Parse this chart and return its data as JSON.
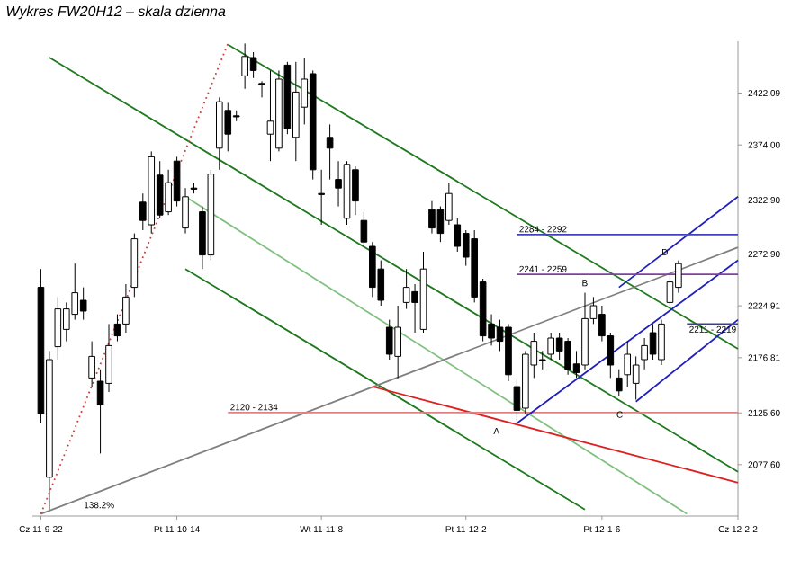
{
  "chart_data": {
    "type": "candlestick",
    "title": "Wykres FW20H12 – skala dzienna",
    "categories": [
      "Cz 11-9-22",
      null,
      null,
      null,
      null,
      null,
      null,
      null,
      null,
      null,
      null,
      null,
      null,
      null,
      null,
      null,
      "Pt 11-10-14",
      null,
      null,
      null,
      null,
      null,
      null,
      null,
      null,
      null,
      null,
      null,
      null,
      null,
      null,
      null,
      null,
      "Wt 11-11-8",
      null,
      null,
      null,
      null,
      null,
      null,
      null,
      null,
      null,
      null,
      null,
      null,
      null,
      null,
      null,
      null,
      "Pt 11-12-2",
      null,
      null,
      null,
      null,
      null,
      null,
      null,
      null,
      null,
      null,
      null,
      null,
      null,
      null,
      null,
      "Pt 12-1-6",
      null,
      null,
      null,
      null,
      null,
      null,
      null,
      null,
      null,
      null,
      null,
      null,
      null,
      null,
      null,
      "Cz 12-2-2"
    ],
    "ohlc": [
      [
        2242,
        2259,
        2116,
        2125
      ],
      [
        2066,
        2183,
        2036,
        2175
      ],
      [
        2187,
        2233,
        2175,
        2222
      ],
      [
        2203,
        2228,
        2192,
        2222
      ],
      [
        2217,
        2264,
        2212,
        2237
      ],
      [
        2230,
        2242,
        2212,
        2220
      ],
      [
        2158,
        2192,
        2150,
        2178
      ],
      [
        2155,
        2166,
        2088,
        2133
      ],
      [
        2153,
        2208,
        2145,
        2188
      ],
      [
        2208,
        2217,
        2192,
        2197
      ],
      [
        2208,
        2245,
        2200,
        2233
      ],
      [
        2242,
        2292,
        2233,
        2287
      ],
      [
        2321,
        2329,
        2295,
        2304
      ],
      [
        2300,
        2368,
        2292,
        2363
      ],
      [
        2346,
        2359,
        2306,
        2309
      ],
      [
        2312,
        2351,
        2309,
        2339
      ],
      [
        2359,
        2363,
        2317,
        2322
      ],
      [
        2297,
        2334,
        2292,
        2326
      ],
      [
        2334,
        2339,
        2329,
        2333
      ],
      [
        2312,
        2317,
        2259,
        2272
      ],
      [
        2272,
        2351,
        2267,
        2347
      ],
      [
        2371,
        2418,
        2351,
        2414
      ],
      [
        2406,
        2413,
        2368,
        2384
      ],
      [
        2401,
        2406,
        2396,
        2400
      ],
      [
        2438,
        2468,
        2426,
        2456
      ],
      [
        2455,
        2460,
        2436,
        2443
      ],
      [
        2431,
        2433,
        2418,
        2430
      ],
      [
        2384,
        2443,
        2359,
        2396
      ],
      [
        2371,
        2443,
        2368,
        2435
      ],
      [
        2448,
        2451,
        2384,
        2389
      ],
      [
        2381,
        2451,
        2359,
        2423
      ],
      [
        2409,
        2455,
        2393,
        2435
      ],
      [
        2440,
        2443,
        2342,
        2351
      ],
      [
        2329,
        2351,
        2300,
        2328
      ],
      [
        2381,
        2393,
        2342,
        2371
      ],
      [
        2342,
        2359,
        2317,
        2334
      ],
      [
        2306,
        2359,
        2300,
        2356
      ],
      [
        2351,
        2354,
        2309,
        2322
      ],
      [
        2304,
        2312,
        2279,
        2284
      ],
      [
        2280,
        2284,
        2233,
        2242
      ],
      [
        2259,
        2267,
        2225,
        2230
      ],
      [
        2205,
        2212,
        2175,
        2180
      ],
      [
        2178,
        2225,
        2158,
        2205
      ],
      [
        2228,
        2259,
        2222,
        2242
      ],
      [
        2238,
        2245,
        2200,
        2228
      ],
      [
        2203,
        2275,
        2200,
        2259
      ],
      [
        2314,
        2322,
        2292,
        2297
      ],
      [
        2314,
        2317,
        2284,
        2292
      ],
      [
        2304,
        2339,
        2300,
        2329
      ],
      [
        2300,
        2306,
        2275,
        2280
      ],
      [
        2292,
        2295,
        2262,
        2270
      ],
      [
        2287,
        2295,
        2228,
        2233
      ],
      [
        2247,
        2250,
        2192,
        2197
      ],
      [
        2208,
        2217,
        2188,
        2195
      ],
      [
        2205,
        2212,
        2183,
        2192
      ],
      [
        2205,
        2208,
        2155,
        2161
      ],
      [
        2150,
        2158,
        2116,
        2128
      ],
      [
        2130,
        2183,
        2125,
        2180
      ],
      [
        2170,
        2200,
        2158,
        2192
      ],
      [
        2175,
        2183,
        2166,
        2174
      ],
      [
        2180,
        2200,
        2175,
        2195
      ],
      [
        2195,
        2200,
        2175,
        2183
      ],
      [
        2192,
        2195,
        2161,
        2166
      ],
      [
        2171,
        2183,
        2158,
        2163
      ],
      [
        2170,
        2237,
        2166,
        2213
      ],
      [
        2213,
        2233,
        2208,
        2225
      ],
      [
        2217,
        2225,
        2192,
        2197
      ],
      [
        2197,
        2200,
        2158,
        2170
      ],
      [
        2158,
        2166,
        2141,
        2146
      ],
      [
        2161,
        2192,
        2150,
        2180
      ],
      [
        2153,
        2178,
        2138,
        2170
      ],
      [
        2175,
        2195,
        2166,
        2188
      ],
      [
        2200,
        2208,
        2175,
        2180
      ],
      [
        2175,
        2212,
        2170,
        2208
      ],
      [
        2228,
        2254,
        2225,
        2247
      ],
      [
        2242,
        2267,
        2237,
        2264
      ],
      null,
      null,
      null,
      null,
      null,
      null,
      null
    ],
    "series": [
      {
        "type": "line",
        "color": "#1f7a1f",
        "line_style": "solid",
        "values": [
          null,
          null,
          null,
          null,
          null,
          null,
          null,
          null,
          null,
          null,
          null,
          null,
          null,
          null,
          null,
          null,
          null,
          null,
          null,
          null,
          null,
          null,
          2467,
          null,
          null,
          null,
          null,
          null,
          null,
          null,
          null,
          null,
          null,
          null,
          null,
          null,
          null,
          null,
          null,
          null,
          null,
          null,
          null,
          null,
          null,
          null,
          null,
          null,
          null,
          null,
          null,
          null,
          null,
          null,
          null,
          null,
          null,
          null,
          null,
          null,
          null,
          null,
          null,
          null,
          null,
          null,
          null,
          null,
          null,
          null,
          null,
          null,
          null,
          null,
          null,
          null,
          null,
          null,
          null,
          null,
          null,
          null,
          2185
        ]
      },
      {
        "type": "line",
        "color": "#1f7a1f",
        "line_style": "solid",
        "values": [
          null,
          2455,
          null,
          null,
          null,
          null,
          null,
          null,
          null,
          null,
          null,
          null,
          null,
          null,
          null,
          null,
          null,
          null,
          null,
          null,
          null,
          null,
          null,
          null,
          null,
          null,
          null,
          null,
          null,
          null,
          null,
          null,
          null,
          null,
          null,
          null,
          null,
          null,
          null,
          null,
          null,
          null,
          null,
          null,
          null,
          null,
          null,
          null,
          null,
          null,
          null,
          null,
          null,
          null,
          null,
          null,
          null,
          null,
          null,
          null,
          null,
          null,
          null,
          null,
          null,
          null,
          null,
          null,
          null,
          null,
          null,
          null,
          null,
          null,
          null,
          null,
          null,
          null,
          null,
          null,
          null,
          null,
          2071
        ]
      },
      {
        "type": "line",
        "color": "#1f7a1f",
        "line_style": "solid",
        "values": [
          null,
          null,
          null,
          null,
          null,
          null,
          null,
          null,
          null,
          null,
          null,
          null,
          null,
          null,
          null,
          null,
          null,
          2259,
          null,
          null,
          null,
          null,
          null,
          null,
          null,
          null,
          null,
          null,
          null,
          null,
          null,
          null,
          null,
          null,
          null,
          null,
          null,
          null,
          null,
          null,
          null,
          null,
          null,
          null,
          null,
          null,
          null,
          null,
          null,
          null,
          null,
          null,
          null,
          null,
          null,
          null,
          null,
          null,
          null,
          null,
          null,
          null,
          null,
          null,
          2036,
          null,
          null,
          null,
          null,
          null,
          null,
          null,
          null,
          null,
          null,
          null,
          null,
          null,
          null,
          null,
          null,
          null,
          null
        ]
      },
      {
        "type": "line",
        "color": "#80c080",
        "line_style": "solid",
        "values": [
          null,
          null,
          null,
          null,
          null,
          null,
          null,
          null,
          null,
          null,
          null,
          null,
          null,
          null,
          null,
          null,
          null,
          2326,
          null,
          null,
          null,
          null,
          null,
          null,
          null,
          null,
          null,
          null,
          null,
          null,
          null,
          null,
          null,
          null,
          null,
          null,
          null,
          null,
          null,
          null,
          null,
          null,
          null,
          null,
          null,
          null,
          null,
          null,
          null,
          null,
          null,
          null,
          null,
          null,
          null,
          null,
          null,
          null,
          null,
          null,
          null,
          null,
          null,
          null,
          null,
          null,
          null,
          null,
          null,
          null,
          null,
          null,
          null,
          null,
          null,
          null,
          2032,
          null,
          null,
          null,
          null,
          null,
          null
        ]
      },
      {
        "type": "line",
        "color": "#808080",
        "line_style": "solid",
        "values": [
          2032,
          null,
          null,
          null,
          null,
          null,
          null,
          null,
          null,
          null,
          null,
          null,
          null,
          null,
          null,
          null,
          null,
          null,
          null,
          null,
          null,
          null,
          null,
          null,
          null,
          null,
          null,
          null,
          null,
          null,
          null,
          null,
          null,
          null,
          null,
          null,
          null,
          null,
          null,
          null,
          null,
          null,
          null,
          null,
          null,
          null,
          null,
          null,
          null,
          null,
          null,
          null,
          null,
          null,
          null,
          null,
          null,
          null,
          null,
          null,
          null,
          null,
          null,
          null,
          null,
          null,
          null,
          null,
          null,
          null,
          null,
          null,
          null,
          null,
          null,
          null,
          null,
          null,
          null,
          null,
          null,
          null,
          2279
        ]
      },
      {
        "type": "line",
        "color": "#d04040",
        "line_style": "dotted",
        "values": [
          2032,
          null,
          null,
          null,
          null,
          null,
          null,
          null,
          null,
          null,
          null,
          null,
          null,
          null,
          null,
          null,
          null,
          null,
          null,
          null,
          null,
          null,
          2468,
          null,
          null,
          null,
          null,
          null,
          null,
          null,
          null,
          null,
          null,
          null,
          null,
          null,
          null,
          null,
          null,
          null,
          null,
          null,
          null,
          null,
          null,
          null,
          null,
          null,
          null,
          null,
          null,
          null,
          null,
          null,
          null,
          null,
          null,
          null,
          null,
          null,
          null,
          null,
          null,
          null,
          null,
          null,
          null,
          null,
          null,
          null,
          null,
          null,
          null,
          null,
          null,
          null,
          null,
          null,
          null,
          null,
          null,
          null,
          null
        ]
      },
      {
        "type": "line",
        "color": "#e02020",
        "line_style": "solid",
        "values": [
          null,
          null,
          null,
          null,
          null,
          null,
          null,
          null,
          null,
          null,
          null,
          null,
          null,
          null,
          null,
          null,
          null,
          null,
          null,
          null,
          null,
          null,
          null,
          null,
          null,
          null,
          null,
          null,
          null,
          null,
          null,
          null,
          null,
          null,
          null,
          null,
          null,
          null,
          null,
          2150,
          null,
          null,
          null,
          null,
          null,
          null,
          null,
          null,
          null,
          null,
          null,
          null,
          null,
          null,
          null,
          null,
          null,
          null,
          null,
          null,
          null,
          null,
          null,
          null,
          null,
          null,
          null,
          null,
          null,
          null,
          null,
          null,
          null,
          null,
          null,
          null,
          null,
          null,
          null,
          null,
          null,
          null,
          2061
        ]
      },
      {
        "type": "line",
        "name": "2120 - 2134",
        "color": "#e08080",
        "line_style": "solid",
        "values": [
          null,
          null,
          null,
          null,
          null,
          null,
          null,
          null,
          null,
          null,
          null,
          null,
          null,
          null,
          null,
          null,
          null,
          null,
          null,
          null,
          null,
          null,
          2126,
          null,
          null,
          null,
          null,
          null,
          null,
          null,
          null,
          null,
          null,
          null,
          null,
          null,
          null,
          null,
          null,
          null,
          null,
          null,
          null,
          null,
          null,
          null,
          null,
          null,
          null,
          null,
          null,
          null,
          null,
          null,
          null,
          null,
          null,
          null,
          null,
          null,
          null,
          null,
          null,
          null,
          null,
          null,
          null,
          null,
          null,
          null,
          null,
          null,
          null,
          null,
          null,
          null,
          null,
          null,
          null,
          null,
          null,
          null,
          2126
        ]
      },
      {
        "type": "line",
        "color": "#2020c0",
        "line_style": "solid",
        "values": [
          null,
          null,
          null,
          null,
          null,
          null,
          null,
          null,
          null,
          null,
          null,
          null,
          null,
          null,
          null,
          null,
          null,
          null,
          null,
          null,
          null,
          null,
          null,
          null,
          null,
          null,
          null,
          null,
          null,
          null,
          null,
          null,
          null,
          null,
          null,
          null,
          null,
          null,
          null,
          null,
          null,
          null,
          null,
          null,
          null,
          null,
          null,
          null,
          null,
          null,
          null,
          null,
          null,
          null,
          null,
          null,
          null,
          null,
          null,
          null,
          null,
          null,
          null,
          null,
          null,
          null,
          null,
          null,
          2242,
          null,
          null,
          null,
          null,
          null,
          null,
          null,
          null,
          null,
          null,
          null,
          null,
          null,
          2326
        ]
      },
      {
        "type": "line",
        "color": "#2020c0",
        "line_style": "solid",
        "values": [
          null,
          null,
          null,
          null,
          null,
          null,
          null,
          null,
          null,
          null,
          null,
          null,
          null,
          null,
          null,
          null,
          null,
          null,
          null,
          null,
          null,
          null,
          null,
          null,
          null,
          null,
          null,
          null,
          null,
          null,
          null,
          null,
          null,
          null,
          null,
          null,
          null,
          null,
          null,
          null,
          null,
          null,
          null,
          null,
          null,
          null,
          null,
          null,
          null,
          null,
          null,
          null,
          null,
          null,
          null,
          null,
          2116,
          null,
          null,
          null,
          null,
          null,
          null,
          null,
          null,
          null,
          null,
          null,
          null,
          null,
          null,
          null,
          null,
          null,
          null,
          null,
          null,
          null,
          null,
          null,
          null,
          null,
          2267
        ]
      },
      {
        "type": "line",
        "color": "#2020c0",
        "line_style": "solid",
        "values": [
          null,
          null,
          null,
          null,
          null,
          null,
          null,
          null,
          null,
          null,
          null,
          null,
          null,
          null,
          null,
          null,
          null,
          null,
          null,
          null,
          null,
          null,
          null,
          null,
          null,
          null,
          null,
          null,
          null,
          null,
          null,
          null,
          null,
          null,
          null,
          null,
          null,
          null,
          null,
          null,
          null,
          null,
          null,
          null,
          null,
          null,
          null,
          null,
          null,
          null,
          null,
          null,
          null,
          null,
          null,
          null,
          null,
          null,
          null,
          null,
          null,
          null,
          null,
          null,
          null,
          null,
          null,
          null,
          null,
          null,
          2136,
          null,
          null,
          null,
          null,
          null,
          null,
          null,
          null,
          null,
          null,
          null,
          2212
        ]
      },
      {
        "type": "line",
        "name": "2284 - 2292",
        "color": "#4040c0",
        "line_style": "solid",
        "values": [
          null,
          null,
          null,
          null,
          null,
          null,
          null,
          null,
          null,
          null,
          null,
          null,
          null,
          null,
          null,
          null,
          null,
          null,
          null,
          null,
          null,
          null,
          null,
          null,
          null,
          null,
          null,
          null,
          null,
          null,
          null,
          null,
          null,
          null,
          null,
          null,
          null,
          null,
          null,
          null,
          null,
          null,
          null,
          null,
          null,
          null,
          null,
          null,
          null,
          null,
          null,
          null,
          null,
          null,
          null,
          null,
          2291,
          null,
          null,
          null,
          null,
          null,
          null,
          null,
          null,
          null,
          null,
          null,
          null,
          null,
          null,
          null,
          null,
          null,
          null,
          null,
          null,
          null,
          null,
          null,
          null,
          null,
          2291
        ]
      },
      {
        "type": "line",
        "name": "2241 - 2259",
        "color": "#8040a0",
        "line_style": "solid",
        "values": [
          null,
          null,
          null,
          null,
          null,
          null,
          null,
          null,
          null,
          null,
          null,
          null,
          null,
          null,
          null,
          null,
          null,
          null,
          null,
          null,
          null,
          null,
          null,
          null,
          null,
          null,
          null,
          null,
          null,
          null,
          null,
          null,
          null,
          null,
          null,
          null,
          null,
          null,
          null,
          null,
          null,
          null,
          null,
          null,
          null,
          null,
          null,
          null,
          null,
          null,
          null,
          null,
          null,
          null,
          null,
          null,
          2254,
          null,
          null,
          null,
          null,
          null,
          null,
          null,
          null,
          null,
          null,
          null,
          null,
          null,
          null,
          null,
          null,
          null,
          null,
          null,
          null,
          null,
          null,
          null,
          null,
          null,
          2254
        ]
      },
      {
        "type": "line",
        "name": "2211 - 2219",
        "color": "#404080",
        "line_style": "solid",
        "values": [
          null,
          null,
          null,
          null,
          null,
          null,
          null,
          null,
          null,
          null,
          null,
          null,
          null,
          null,
          null,
          null,
          null,
          null,
          null,
          null,
          null,
          null,
          null,
          null,
          null,
          null,
          null,
          null,
          null,
          null,
          null,
          null,
          null,
          null,
          null,
          null,
          null,
          null,
          null,
          null,
          null,
          null,
          null,
          null,
          null,
          null,
          null,
          null,
          null,
          null,
          null,
          null,
          null,
          null,
          null,
          null,
          null,
          null,
          null,
          null,
          null,
          null,
          null,
          null,
          null,
          null,
          null,
          null,
          null,
          null,
          null,
          null,
          null,
          null,
          null,
          null,
          2208,
          null,
          null,
          null,
          null,
          null,
          2208
        ]
      }
    ],
    "ylim": [
      2030,
      2470
    ],
    "yticks": [
      {
        "value": 2077.6,
        "label": "2077.60"
      },
      {
        "value": 2125.6,
        "label": "2125.60"
      },
      {
        "value": 2176.81,
        "label": "2176.81"
      },
      {
        "value": 2224.91,
        "label": "2224.91"
      },
      {
        "value": 2272.9,
        "label": "2272.90"
      },
      {
        "value": 2322.9,
        "label": "2322.90"
      },
      {
        "value": 2374.0,
        "label": "2374.00"
      },
      {
        "value": 2422.09,
        "label": "2422.09"
      }
    ],
    "annotations": [
      "A",
      "B",
      "C",
      "D",
      "138.2%"
    ]
  }
}
